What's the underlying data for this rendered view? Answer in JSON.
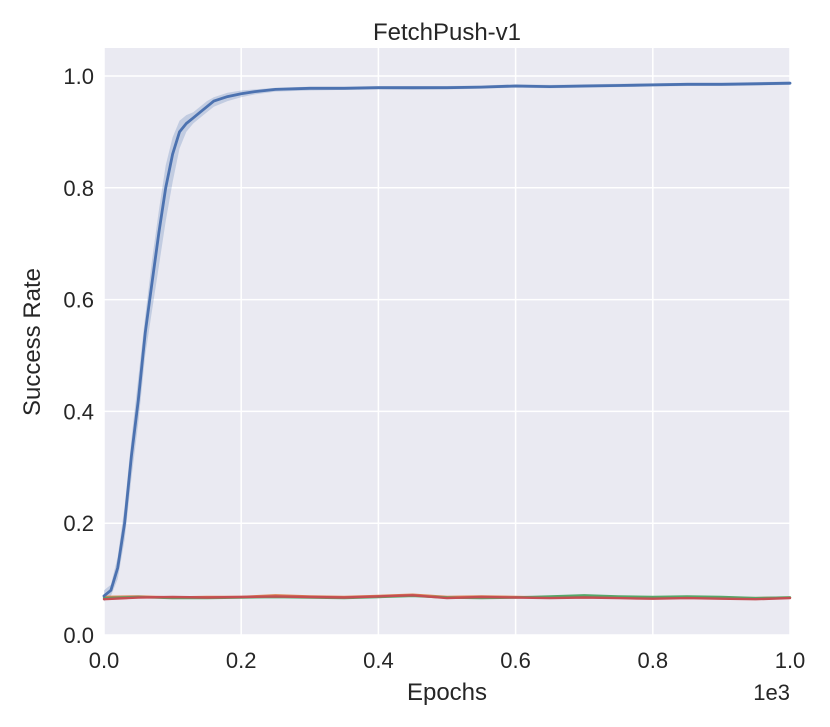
{
  "chart_data": {
    "type": "line",
    "title": "FetchPush-v1",
    "xlabel": "Epochs",
    "ylabel": "Success Rate",
    "x_offset_label": "1e3",
    "xlim": [
      0,
      1.0
    ],
    "ylim": [
      0,
      1.05
    ],
    "x_ticks": [
      "0.0",
      "0.2",
      "0.4",
      "0.6",
      "0.8",
      "1.0"
    ],
    "y_ticks": [
      "0.0",
      "0.2",
      "0.4",
      "0.6",
      "0.8",
      "1.0"
    ],
    "x_tick_values": [
      0,
      0.2,
      0.4,
      0.6,
      0.8,
      1.0
    ],
    "y_tick_values": [
      0,
      0.2,
      0.4,
      0.6,
      0.8,
      1.0
    ],
    "grid": true,
    "background": "#eaeaf2",
    "series": [
      {
        "color": "#4c72b0",
        "band": true,
        "x": [
          0.0,
          0.01,
          0.02,
          0.03,
          0.04,
          0.05,
          0.06,
          0.07,
          0.08,
          0.09,
          0.1,
          0.11,
          0.12,
          0.13,
          0.14,
          0.15,
          0.16,
          0.18,
          0.2,
          0.22,
          0.25,
          0.3,
          0.35,
          0.4,
          0.45,
          0.5,
          0.55,
          0.6,
          0.65,
          0.7,
          0.75,
          0.8,
          0.85,
          0.9,
          0.95,
          1.0
        ],
        "y": [
          0.07,
          0.08,
          0.12,
          0.2,
          0.32,
          0.42,
          0.54,
          0.63,
          0.72,
          0.8,
          0.86,
          0.9,
          0.915,
          0.925,
          0.935,
          0.945,
          0.955,
          0.963,
          0.968,
          0.972,
          0.976,
          0.978,
          0.978,
          0.979,
          0.979,
          0.979,
          0.98,
          0.982,
          0.981,
          0.982,
          0.983,
          0.984,
          0.985,
          0.985,
          0.986,
          0.987
        ],
        "y_lower": [
          0.06,
          0.07,
          0.1,
          0.17,
          0.28,
          0.38,
          0.5,
          0.58,
          0.66,
          0.74,
          0.81,
          0.87,
          0.9,
          0.915,
          0.925,
          0.935,
          0.945,
          0.955,
          0.962,
          0.967,
          0.972,
          0.974,
          0.975,
          0.976,
          0.975,
          0.976,
          0.977,
          0.979,
          0.978,
          0.979,
          0.98,
          0.981,
          0.982,
          0.982,
          0.983,
          0.984
        ],
        "y_upper": [
          0.08,
          0.09,
          0.14,
          0.23,
          0.35,
          0.46,
          0.57,
          0.67,
          0.76,
          0.84,
          0.89,
          0.92,
          0.93,
          0.935,
          0.945,
          0.955,
          0.962,
          0.97,
          0.974,
          0.976,
          0.979,
          0.981,
          0.981,
          0.982,
          0.982,
          0.982,
          0.983,
          0.985,
          0.984,
          0.985,
          0.986,
          0.987,
          0.988,
          0.988,
          0.989,
          0.99
        ]
      },
      {
        "color": "#dd8452",
        "band": false,
        "x": [
          0.0,
          0.05,
          0.1,
          0.15,
          0.2,
          0.25,
          0.3,
          0.35,
          0.4,
          0.45,
          0.5,
          0.55,
          0.6,
          0.65,
          0.7,
          0.75,
          0.8,
          0.85,
          0.9,
          0.95,
          1.0
        ],
        "y": [
          0.068,
          0.069,
          0.067,
          0.068,
          0.068,
          0.071,
          0.069,
          0.068,
          0.07,
          0.072,
          0.068,
          0.069,
          0.068,
          0.067,
          0.069,
          0.068,
          0.067,
          0.068,
          0.066,
          0.066,
          0.067
        ]
      },
      {
        "color": "#55a868",
        "band": false,
        "x": [
          0.0,
          0.05,
          0.1,
          0.15,
          0.2,
          0.25,
          0.3,
          0.35,
          0.4,
          0.45,
          0.5,
          0.55,
          0.6,
          0.65,
          0.7,
          0.75,
          0.8,
          0.85,
          0.9,
          0.95,
          1.0
        ],
        "y": [
          0.066,
          0.068,
          0.066,
          0.066,
          0.067,
          0.068,
          0.067,
          0.066,
          0.068,
          0.07,
          0.067,
          0.066,
          0.067,
          0.069,
          0.071,
          0.069,
          0.068,
          0.069,
          0.068,
          0.066,
          0.067
        ]
      },
      {
        "color": "#c44e52",
        "band": false,
        "x": [
          0.0,
          0.05,
          0.1,
          0.15,
          0.2,
          0.25,
          0.3,
          0.35,
          0.4,
          0.45,
          0.5,
          0.55,
          0.6,
          0.65,
          0.7,
          0.75,
          0.8,
          0.85,
          0.9,
          0.95,
          1.0
        ],
        "y": [
          0.064,
          0.067,
          0.068,
          0.067,
          0.068,
          0.069,
          0.068,
          0.067,
          0.069,
          0.071,
          0.066,
          0.068,
          0.067,
          0.066,
          0.067,
          0.066,
          0.065,
          0.066,
          0.065,
          0.064,
          0.066
        ]
      }
    ]
  }
}
